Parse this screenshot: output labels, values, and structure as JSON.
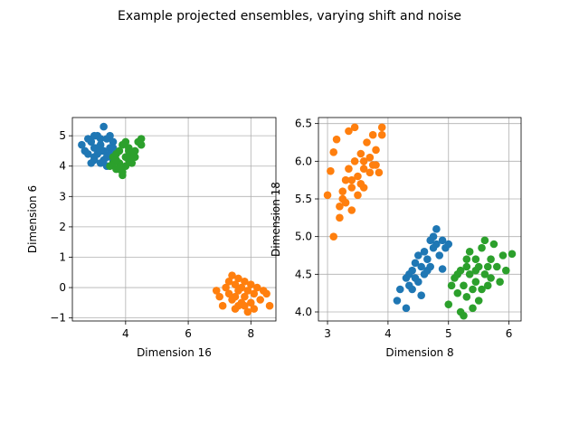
{
  "figure": {
    "title": "Example projected ensembles, varying shift and noise"
  },
  "colors": {
    "blue": "#1f77b4",
    "orange": "#ff7f0e",
    "green": "#2ca02c"
  },
  "chart_data": [
    {
      "type": "scatter",
      "xlabel": "Dimension 16",
      "ylabel": "Dimension 6",
      "xlim": [
        2.3,
        8.8
      ],
      "ylim": [
        -1.1,
        5.6
      ],
      "xticks": [
        4,
        6,
        8
      ],
      "yticks": [
        -1,
        0,
        1,
        2,
        3,
        4,
        5
      ],
      "grid": true,
      "series": [
        {
          "color": "blue",
          "points": [
            [
              2.6,
              4.7
            ],
            [
              2.8,
              4.4
            ],
            [
              2.9,
              4.8
            ],
            [
              3.0,
              4.2
            ],
            [
              3.0,
              4.6
            ],
            [
              3.1,
              5.0
            ],
            [
              3.1,
              4.4
            ],
            [
              3.2,
              4.7
            ],
            [
              3.2,
              4.1
            ],
            [
              3.3,
              5.3
            ],
            [
              3.3,
              4.5
            ],
            [
              3.4,
              4.9
            ],
            [
              3.4,
              4.3
            ],
            [
              3.5,
              4.6
            ],
            [
              3.5,
              5.0
            ],
            [
              3.6,
              4.2
            ],
            [
              3.6,
              4.8
            ],
            [
              3.7,
              4.4
            ],
            [
              2.7,
              4.5
            ],
            [
              2.9,
              4.1
            ],
            [
              3.0,
              5.0
            ],
            [
              3.2,
              4.9
            ],
            [
              3.4,
              4.0
            ],
            [
              3.5,
              4.4
            ],
            [
              3.1,
              4.6
            ],
            [
              3.3,
              4.2
            ],
            [
              2.8,
              4.9
            ],
            [
              3.6,
              4.6
            ],
            [
              3.0,
              4.3
            ],
            [
              3.2,
              4.5
            ]
          ]
        },
        {
          "color": "green",
          "points": [
            [
              3.5,
              4.0
            ],
            [
              3.6,
              4.3
            ],
            [
              3.7,
              3.9
            ],
            [
              3.8,
              4.5
            ],
            [
              3.8,
              4.1
            ],
            [
              3.9,
              4.7
            ],
            [
              3.9,
              3.8
            ],
            [
              4.0,
              4.3
            ],
            [
              4.0,
              4.0
            ],
            [
              4.1,
              4.6
            ],
            [
              4.1,
              4.2
            ],
            [
              4.2,
              4.4
            ],
            [
              3.9,
              3.7
            ],
            [
              4.3,
              4.5
            ],
            [
              4.4,
              4.8
            ],
            [
              4.5,
              4.9
            ],
            [
              4.5,
              4.7
            ],
            [
              3.6,
              4.1
            ],
            [
              3.7,
              4.4
            ],
            [
              4.0,
              4.8
            ],
            [
              4.2,
              4.1
            ],
            [
              3.8,
              3.9
            ],
            [
              4.1,
              4.5
            ],
            [
              3.7,
              4.2
            ],
            [
              4.3,
              4.3
            ]
          ]
        },
        {
          "color": "orange",
          "points": [
            [
              6.9,
              -0.1
            ],
            [
              7.0,
              -0.3
            ],
            [
              7.1,
              -0.6
            ],
            [
              7.2,
              0.0
            ],
            [
              7.3,
              -0.2
            ],
            [
              7.4,
              0.4
            ],
            [
              7.4,
              -0.4
            ],
            [
              7.5,
              0.1
            ],
            [
              7.5,
              -0.7
            ],
            [
              7.6,
              -0.1
            ],
            [
              7.6,
              0.3
            ],
            [
              7.7,
              -0.5
            ],
            [
              7.7,
              0.0
            ],
            [
              7.8,
              -0.3
            ],
            [
              7.8,
              0.2
            ],
            [
              7.9,
              -0.8
            ],
            [
              7.9,
              -0.1
            ],
            [
              8.0,
              0.1
            ],
            [
              8.0,
              -0.5
            ],
            [
              8.1,
              -0.2
            ],
            [
              8.2,
              0.0
            ],
            [
              8.3,
              -0.4
            ],
            [
              8.4,
              -0.1
            ],
            [
              8.5,
              -0.2
            ],
            [
              8.6,
              -0.6
            ],
            [
              7.3,
              0.2
            ],
            [
              7.6,
              -0.6
            ],
            [
              8.1,
              -0.7
            ],
            [
              7.8,
              -0.6
            ],
            [
              7.5,
              -0.3
            ]
          ]
        }
      ]
    },
    {
      "type": "scatter",
      "xlabel": "Dimension 8",
      "ylabel": "Dimension 18",
      "xlim": [
        2.85,
        6.2
      ],
      "ylim": [
        3.88,
        6.58
      ],
      "xticks": [
        3,
        4,
        5,
        6
      ],
      "yticks": [
        4.0,
        4.5,
        5.0,
        5.5,
        6.0,
        6.5
      ],
      "ytick_labels": [
        "4.0",
        "4.5",
        "5.0",
        "5.5",
        "6.0",
        "6.5"
      ],
      "grid": true,
      "series": [
        {
          "color": "orange",
          "points": [
            [
              3.05,
              5.87
            ],
            [
              3.1,
              6.12
            ],
            [
              3.15,
              6.29
            ],
            [
              3.1,
              5.0
            ],
            [
              3.2,
              5.25
            ],
            [
              3.25,
              5.5
            ],
            [
              3.25,
              5.6
            ],
            [
              3.3,
              5.75
            ],
            [
              3.3,
              5.45
            ],
            [
              3.35,
              5.9
            ],
            [
              3.35,
              6.4
            ],
            [
              3.4,
              5.65
            ],
            [
              3.4,
              5.35
            ],
            [
              3.45,
              6.45
            ],
            [
              3.45,
              6.0
            ],
            [
              3.5,
              5.8
            ],
            [
              3.5,
              5.55
            ],
            [
              3.55,
              6.1
            ],
            [
              3.55,
              5.7
            ],
            [
              3.6,
              5.9
            ],
            [
              3.6,
              5.65
            ],
            [
              3.65,
              6.25
            ],
            [
              3.7,
              5.85
            ],
            [
              3.7,
              6.05
            ],
            [
              3.75,
              6.35
            ],
            [
              3.75,
              5.95
            ],
            [
              3.8,
              6.15
            ],
            [
              3.85,
              5.85
            ],
            [
              3.9,
              6.45
            ],
            [
              3.9,
              6.35
            ],
            [
              3.0,
              5.55
            ],
            [
              3.2,
              5.4
            ],
            [
              3.6,
              6.0
            ],
            [
              3.8,
              5.95
            ],
            [
              3.4,
              5.75
            ]
          ]
        },
        {
          "color": "blue",
          "points": [
            [
              4.15,
              4.15
            ],
            [
              4.2,
              4.3
            ],
            [
              4.3,
              4.05
            ],
            [
              4.3,
              4.45
            ],
            [
              4.35,
              4.35
            ],
            [
              4.4,
              4.55
            ],
            [
              4.4,
              4.3
            ],
            [
              4.45,
              4.65
            ],
            [
              4.5,
              4.4
            ],
            [
              4.5,
              4.75
            ],
            [
              4.55,
              4.22
            ],
            [
              4.55,
              4.6
            ],
            [
              4.6,
              4.8
            ],
            [
              4.6,
              4.5
            ],
            [
              4.65,
              4.7
            ],
            [
              4.7,
              4.95
            ],
            [
              4.7,
              4.6
            ],
            [
              4.75,
              4.85
            ],
            [
              4.8,
              5.1
            ],
            [
              4.8,
              4.9
            ],
            [
              4.85,
              4.75
            ],
            [
              4.9,
              4.95
            ],
            [
              4.9,
              4.57
            ],
            [
              4.95,
              4.85
            ],
            [
              5.0,
              4.9
            ],
            [
              4.45,
              4.45
            ],
            [
              4.65,
              4.55
            ],
            [
              4.75,
              5.0
            ],
            [
              4.35,
              4.5
            ]
          ]
        },
        {
          "color": "green",
          "points": [
            [
              5.0,
              4.1
            ],
            [
              5.05,
              4.35
            ],
            [
              5.1,
              4.45
            ],
            [
              5.15,
              4.25
            ],
            [
              5.2,
              4.55
            ],
            [
              5.2,
              4.0
            ],
            [
              5.25,
              4.35
            ],
            [
              5.25,
              3.95
            ],
            [
              5.3,
              4.6
            ],
            [
              5.3,
              4.2
            ],
            [
              5.35,
              4.5
            ],
            [
              5.35,
              4.8
            ],
            [
              5.4,
              4.3
            ],
            [
              5.4,
              4.05
            ],
            [
              5.45,
              4.7
            ],
            [
              5.45,
              4.4
            ],
            [
              5.5,
              4.15
            ],
            [
              5.5,
              4.6
            ],
            [
              5.55,
              4.85
            ],
            [
              5.55,
              4.3
            ],
            [
              5.6,
              4.5
            ],
            [
              5.6,
              4.95
            ],
            [
              5.65,
              4.35
            ],
            [
              5.7,
              4.7
            ],
            [
              5.7,
              4.45
            ],
            [
              5.75,
              4.9
            ],
            [
              5.8,
              4.6
            ],
            [
              5.85,
              4.4
            ],
            [
              5.9,
              4.75
            ],
            [
              5.95,
              4.55
            ],
            [
              6.05,
              4.77
            ],
            [
              5.15,
              4.5
            ],
            [
              5.45,
              4.55
            ],
            [
              5.65,
              4.6
            ],
            [
              5.3,
              4.7
            ]
          ]
        }
      ]
    }
  ]
}
